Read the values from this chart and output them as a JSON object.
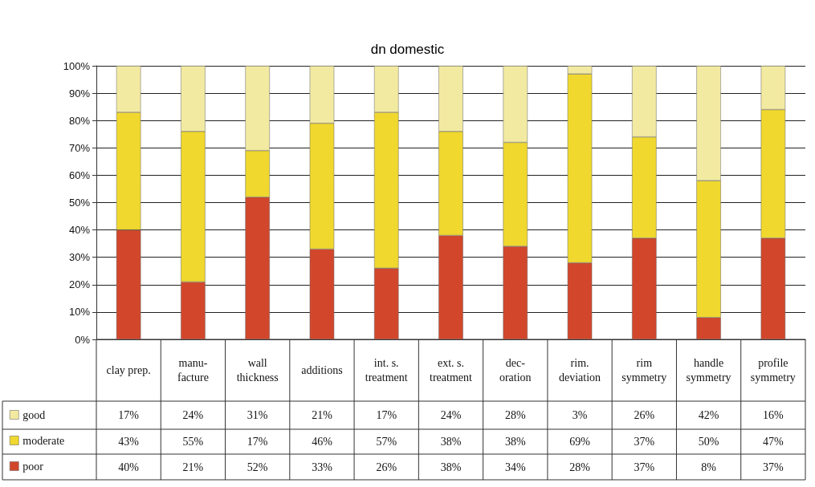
{
  "chart_data": {
    "type": "bar",
    "title": "dn domestic",
    "categories": [
      "clay prep.",
      "manu-\nfacture",
      "wall\nthickness",
      "additions",
      "int. s.\ntreatment",
      "ext. s.\ntreatment",
      "dec-\noration",
      "rim.\ndeviation",
      "rim\nsymmetry",
      "handle\nsymmetry",
      "profile\nsymmetry"
    ],
    "stacked": true,
    "series": [
      {
        "name": "poor",
        "color": "#d2472b",
        "values": [
          40,
          21,
          52,
          33,
          26,
          38,
          34,
          28,
          37,
          8,
          37
        ],
        "value_labels": [
          "40%",
          "21%",
          "52%",
          "33%",
          "26%",
          "38%",
          "34%",
          "28%",
          "37%",
          "8%",
          "37%"
        ]
      },
      {
        "name": "moderate",
        "color": "#f0d82e",
        "values": [
          43,
          55,
          17,
          46,
          57,
          38,
          38,
          69,
          37,
          50,
          47
        ],
        "value_labels": [
          "43%",
          "55%",
          "17%",
          "46%",
          "57%",
          "38%",
          "38%",
          "69%",
          "37%",
          "50%",
          "47%"
        ]
      },
      {
        "name": "good",
        "color": "#f3eaa2",
        "values": [
          17,
          24,
          31,
          21,
          17,
          24,
          28,
          3,
          26,
          42,
          16
        ],
        "value_labels": [
          "17%",
          "24%",
          "31%",
          "21%",
          "17%",
          "24%",
          "28%",
          "3%",
          "26%",
          "42%",
          "16%"
        ]
      }
    ],
    "ylim": [
      0,
      100
    ],
    "yticks": [
      {
        "value": 0,
        "label": "0%"
      },
      {
        "value": 10,
        "label": "10%"
      },
      {
        "value": 20,
        "label": "20%"
      },
      {
        "value": 30,
        "label": "30%"
      },
      {
        "value": 40,
        "label": "40%"
      },
      {
        "value": 50,
        "label": "50%"
      },
      {
        "value": 60,
        "label": "60%"
      },
      {
        "value": 70,
        "label": "70%"
      },
      {
        "value": 80,
        "label": "80%"
      },
      {
        "value": 90,
        "label": "90%"
      },
      {
        "value": 100,
        "label": "100%"
      }
    ],
    "grid": true,
    "legend": "bottom left"
  }
}
